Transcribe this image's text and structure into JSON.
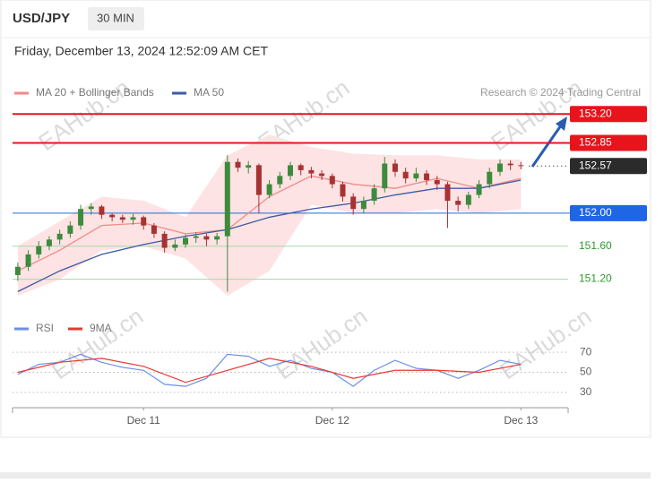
{
  "header": {
    "symbol": "USD/JPY",
    "interval": "30 MIN",
    "timestamp": "Friday, December 13, 2024 12:52:09 AM CET"
  },
  "credit": "Research © 2024 Trading Central",
  "watermark": "EAHub.cn",
  "chart_data": {
    "type": "candlestick",
    "xlim": [
      -0.5,
      52.5
    ],
    "xticks": [
      {
        "value": 12,
        "label": "Dec 11"
      },
      {
        "value": 30,
        "label": "Dec 12"
      },
      {
        "value": 48,
        "label": "Dec 13"
      }
    ],
    "ylim": [
      151.0,
      153.3
    ],
    "up_color": "#3d8b3d",
    "down_color": "#a83232",
    "x": [
      0,
      1,
      2,
      3,
      4,
      5,
      6,
      7,
      8,
      9,
      10,
      11,
      12,
      13,
      14,
      15,
      16,
      17,
      18,
      19,
      20,
      21,
      22,
      23,
      24,
      25,
      26,
      27,
      28,
      29,
      30,
      31,
      32,
      33,
      34,
      35,
      36,
      37,
      38,
      39,
      40,
      41,
      42,
      43,
      44,
      45,
      46,
      47,
      48
    ],
    "open": [
      151.25,
      151.35,
      151.5,
      151.6,
      151.68,
      151.75,
      151.85,
      152.05,
      152.08,
      151.98,
      151.95,
      151.92,
      151.95,
      151.85,
      151.75,
      151.58,
      151.62,
      151.7,
      151.72,
      151.68,
      151.72,
      152.62,
      152.55,
      152.58,
      152.22,
      152.35,
      152.45,
      152.58,
      152.52,
      152.48,
      152.45,
      152.35,
      152.2,
      152.05,
      152.15,
      152.3,
      152.6,
      152.5,
      152.42,
      152.48,
      152.4,
      152.35,
      152.15,
      152.1,
      152.22,
      152.35,
      152.5,
      152.6,
      152.58
    ],
    "high": [
      151.4,
      151.55,
      151.66,
      151.72,
      151.8,
      151.9,
      152.1,
      152.12,
      152.1,
      152.0,
      151.98,
      151.99,
      151.97,
      151.88,
      151.78,
      151.68,
      151.74,
      151.77,
      151.75,
      151.76,
      152.7,
      152.66,
      152.63,
      152.6,
      152.4,
      152.5,
      152.62,
      152.6,
      152.56,
      152.52,
      152.48,
      152.38,
      152.24,
      152.2,
      152.35,
      152.68,
      152.65,
      152.55,
      152.55,
      152.52,
      152.45,
      152.38,
      152.2,
      152.26,
      152.4,
      152.55,
      152.65,
      152.64,
      152.62
    ],
    "low": [
      151.18,
      151.3,
      151.45,
      151.55,
      151.62,
      151.7,
      151.8,
      151.98,
      151.93,
      151.9,
      151.88,
      151.86,
      151.8,
      151.7,
      151.52,
      151.54,
      151.58,
      151.64,
      151.6,
      151.62,
      151.05,
      152.5,
      152.48,
      152.0,
      152.18,
      152.3,
      152.4,
      152.46,
      152.42,
      152.4,
      152.3,
      152.14,
      151.98,
      152.0,
      152.1,
      152.25,
      152.44,
      152.36,
      152.38,
      152.34,
      152.28,
      151.82,
      152.02,
      152.05,
      152.18,
      152.3,
      152.45,
      152.52,
      152.53
    ],
    "close": [
      151.35,
      151.5,
      151.6,
      151.68,
      151.75,
      151.85,
      152.05,
      152.08,
      151.98,
      151.95,
      151.92,
      151.95,
      151.85,
      151.75,
      151.58,
      151.62,
      151.7,
      151.72,
      151.68,
      151.72,
      152.62,
      152.55,
      152.58,
      152.22,
      152.35,
      152.45,
      152.58,
      152.52,
      152.48,
      152.45,
      152.35,
      152.2,
      152.05,
      152.15,
      152.3,
      152.6,
      152.5,
      152.42,
      152.48,
      152.4,
      152.35,
      152.15,
      152.1,
      152.22,
      152.35,
      152.5,
      152.6,
      152.58,
      152.57
    ],
    "overlays": [
      {
        "name": "MA 20 + Bollinger Bands",
        "color": "#f08a8a",
        "band_color": "#fde3e3",
        "x": [
          0,
          4,
          8,
          12,
          16,
          20,
          24,
          28,
          32,
          36,
          40,
          44,
          48
        ],
        "values": [
          151.3,
          151.55,
          151.85,
          151.88,
          151.75,
          151.8,
          152.2,
          152.45,
          152.35,
          152.3,
          152.42,
          152.3,
          152.42
        ],
        "upper": [
          151.6,
          151.9,
          152.2,
          152.15,
          151.95,
          152.7,
          152.95,
          152.8,
          152.72,
          152.7,
          152.7,
          152.65,
          152.65
        ],
        "lower": [
          151.0,
          151.2,
          151.55,
          151.6,
          151.45,
          151.0,
          151.3,
          152.1,
          152.0,
          152.0,
          152.05,
          152.0,
          152.05
        ]
      },
      {
        "name": "MA 50",
        "color": "#3b5ba5",
        "x": [
          0,
          4,
          8,
          12,
          16,
          20,
          24,
          28,
          32,
          36,
          40,
          44,
          48
        ],
        "values": [
          151.05,
          151.3,
          151.5,
          151.62,
          151.72,
          151.8,
          151.95,
          152.05,
          152.12,
          152.22,
          152.3,
          152.3,
          152.4
        ]
      }
    ],
    "levels": [
      {
        "value": 153.2,
        "label": "153.20",
        "color": "#e8141c",
        "style": "box"
      },
      {
        "value": 152.85,
        "label": "152.85",
        "color": "#e8141c",
        "style": "box"
      },
      {
        "value": 152.57,
        "label": "152.57",
        "color": "#2b2b2b",
        "style": "dotted"
      },
      {
        "value": 152.0,
        "label": "152.00",
        "color": "#1f66e5",
        "style": "box"
      },
      {
        "value": 151.6,
        "label": "151.60",
        "color": "#2e9a2e",
        "style": "text"
      },
      {
        "value": 151.2,
        "label": "151.20",
        "color": "#2e9a2e",
        "style": "text"
      }
    ],
    "rsi": {
      "ylim": [
        20,
        80
      ],
      "yticks": [
        30,
        50,
        70
      ],
      "series": [
        {
          "name": "RSI",
          "color": "#6b8fe3",
          "x": [
            0,
            2,
            4,
            6,
            8,
            10,
            12,
            14,
            16,
            18,
            20,
            22,
            24,
            26,
            28,
            30,
            32,
            34,
            36,
            38,
            40,
            42,
            44,
            46,
            48
          ],
          "values": [
            48,
            58,
            60,
            68,
            60,
            55,
            52,
            38,
            36,
            44,
            68,
            66,
            56,
            62,
            54,
            50,
            36,
            52,
            62,
            54,
            52,
            44,
            52,
            62,
            58
          ]
        },
        {
          "name": "9MA",
          "color": "#e53935",
          "x": [
            0,
            4,
            8,
            12,
            16,
            20,
            24,
            28,
            32,
            36,
            40,
            44,
            48
          ],
          "values": [
            50,
            60,
            64,
            56,
            40,
            52,
            64,
            56,
            44,
            52,
            52,
            50,
            58
          ]
        }
      ]
    }
  }
}
